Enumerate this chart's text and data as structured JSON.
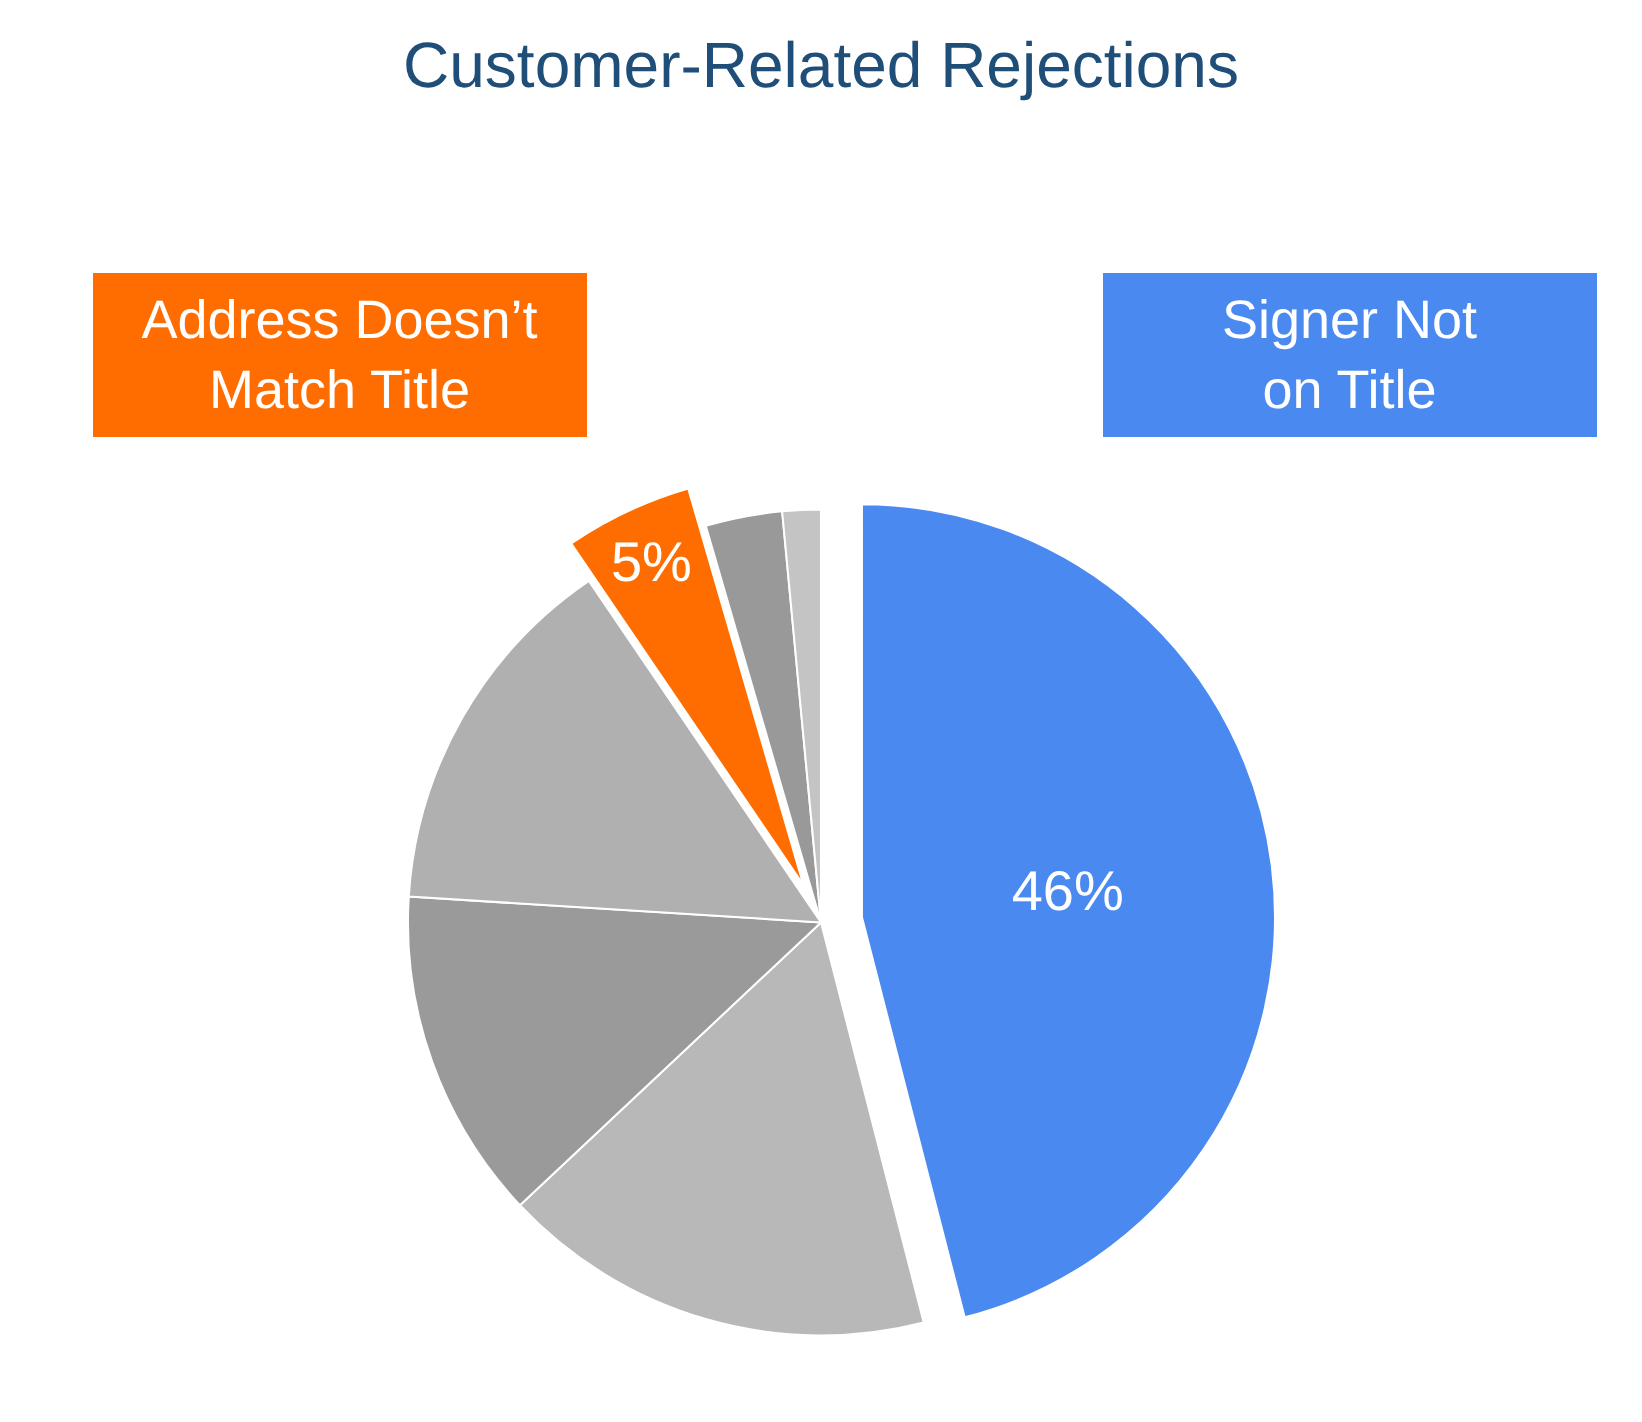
{
  "chart_data": {
    "type": "pie",
    "title": "Customer-Related Rejections",
    "categories": [
      "Signer Not on Title",
      null,
      null,
      null,
      "Address Doesn’t Match Title",
      null,
      null
    ],
    "values": [
      46,
      17,
      13,
      14.5,
      5,
      3,
      1.5
    ],
    "value_labels": [
      "46%",
      null,
      null,
      null,
      "5%",
      null,
      null
    ],
    "colors": [
      "#4a8af0",
      "#b8b8b8",
      "#9a9a9a",
      "#b0b0b0",
      "#ff6d01",
      "#999999",
      "#c4c4c4"
    ],
    "legend": false
  }
}
